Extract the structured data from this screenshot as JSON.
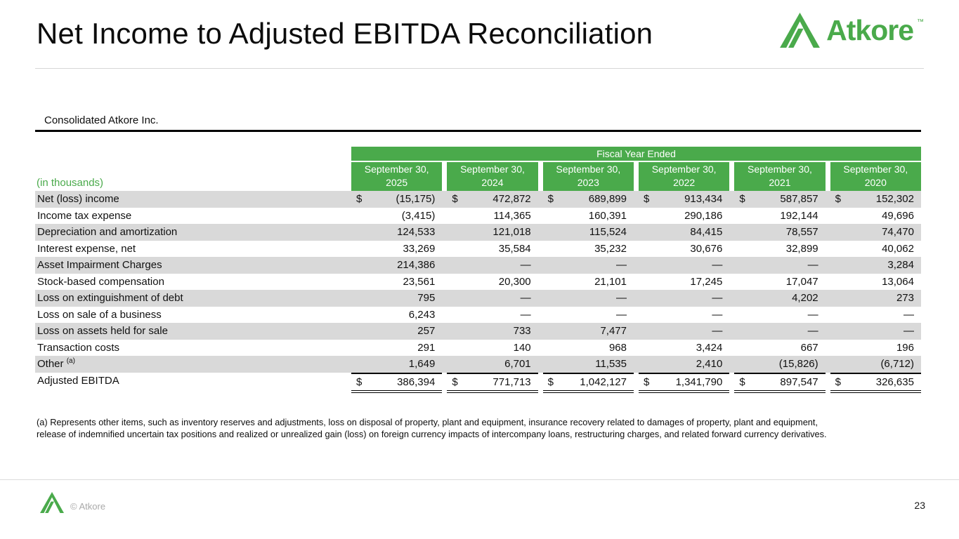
{
  "page": {
    "title": "Net Income to Adjusted EBITDA Reconciliation",
    "page_number": "23"
  },
  "brand": {
    "wordmark": "Atkore",
    "trademark": "™",
    "copyright": "© Atkore",
    "green": "#4aaa4b"
  },
  "table": {
    "caption": "Consolidated Atkore Inc.",
    "units_label": "(in thousands)",
    "group_header": "Fiscal Year Ended",
    "columns": [
      {
        "line1": "September 30,",
        "line2": "2025"
      },
      {
        "line1": "September 30,",
        "line2": "2024"
      },
      {
        "line1": "September 30,",
        "line2": "2023"
      },
      {
        "line1": "September 30,",
        "line2": "2022"
      },
      {
        "line1": "September 30,",
        "line2": "2021"
      },
      {
        "line1": "September 30,",
        "line2": "2020"
      }
    ],
    "rows": [
      {
        "label": "Net (loss) income",
        "sup": "",
        "dollar": "$",
        "total": false,
        "values": [
          "(15,175)",
          "472,872",
          "689,899",
          "913,434",
          "587,857",
          "152,302"
        ]
      },
      {
        "label": "Income tax expense",
        "sup": "",
        "dollar": "",
        "total": false,
        "values": [
          "(3,415)",
          "114,365",
          "160,391",
          "290,186",
          "192,144",
          "49,696"
        ]
      },
      {
        "label": "Depreciation and amortization",
        "sup": "",
        "dollar": "",
        "total": false,
        "values": [
          "124,533",
          "121,018",
          "115,524",
          "84,415",
          "78,557",
          "74,470"
        ]
      },
      {
        "label": "Interest expense, net",
        "sup": "",
        "dollar": "",
        "total": false,
        "values": [
          "33,269",
          "35,584",
          "35,232",
          "30,676",
          "32,899",
          "40,062"
        ]
      },
      {
        "label": "Asset Impairment Charges",
        "sup": "",
        "dollar": "",
        "total": false,
        "values": [
          "214,386",
          "—",
          "—",
          "—",
          "—",
          "3,284"
        ]
      },
      {
        "label": "Stock-based compensation",
        "sup": "",
        "dollar": "",
        "total": false,
        "values": [
          "23,561",
          "20,300",
          "21,101",
          "17,245",
          "17,047",
          "13,064"
        ]
      },
      {
        "label": "Loss on extinguishment of debt",
        "sup": "",
        "dollar": "",
        "total": false,
        "values": [
          "795",
          "—",
          "—",
          "—",
          "4,202",
          "273"
        ]
      },
      {
        "label": "Loss on sale of a business",
        "sup": "",
        "dollar": "",
        "total": false,
        "values": [
          "6,243",
          "—",
          "—",
          "—",
          "—",
          "—"
        ]
      },
      {
        "label": "Loss on assets held for sale",
        "sup": "",
        "dollar": "",
        "total": false,
        "values": [
          "257",
          "733",
          "7,477",
          "—",
          "—",
          "—"
        ]
      },
      {
        "label": "Transaction costs",
        "sup": "",
        "dollar": "",
        "total": false,
        "values": [
          "291",
          "140",
          "968",
          "3,424",
          "667",
          "196"
        ]
      },
      {
        "label": "Other",
        "sup": "(a)",
        "dollar": "",
        "total": false,
        "values": [
          "1,649",
          "6,701",
          "11,535",
          "2,410",
          "(15,826)",
          "(6,712)"
        ]
      },
      {
        "label": "Adjusted EBITDA",
        "sup": "",
        "dollar": "$",
        "total": true,
        "values": [
          "386,394",
          "771,713",
          "1,042,127",
          "1,341,790",
          "897,547",
          "326,635"
        ]
      }
    ]
  },
  "footnote": {
    "line1": "(a) Represents other items, such as inventory reserves and adjustments, loss on disposal of property, plant and equipment, insurance recovery related to damages of property, plant and equipment,",
    "line2": "release of indemnified uncertain tax positions and realized or unrealized gain (loss) on foreign currency impacts of intercompany loans, restructuring charges, and related forward currency derivatives."
  }
}
